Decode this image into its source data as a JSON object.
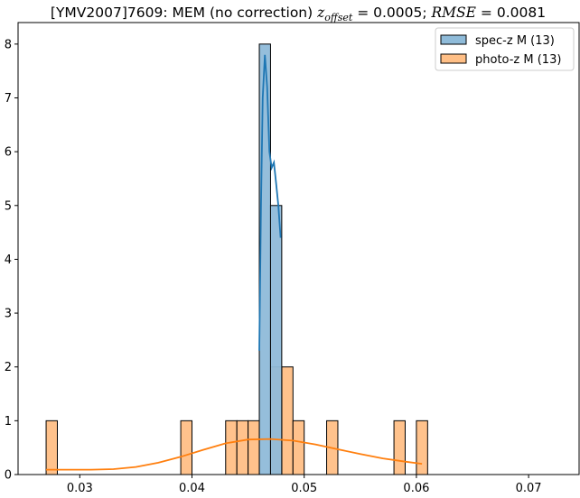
{
  "chart_data": {
    "type": "bar",
    "title": {
      "prefix": "[YMV2007]7609: MEM (no correction) ",
      "z_symbol": "z",
      "z_subscript": "offset",
      "eq1": " = 0.0005; ",
      "rmse_symbol": "RMSE",
      "eq2": " = 0.0081"
    },
    "xlabel": "",
    "ylabel": "",
    "xlim": [
      0.0245,
      0.0745
    ],
    "ylim": [
      0,
      8.4
    ],
    "x_ticks": [
      {
        "value": 0.03,
        "label": "0.03"
      },
      {
        "value": 0.04,
        "label": "0.04"
      },
      {
        "value": 0.05,
        "label": "0.05"
      },
      {
        "value": 0.06,
        "label": "0.06"
      },
      {
        "value": 0.07,
        "label": "0.07"
      }
    ],
    "y_ticks": [
      {
        "value": 0,
        "label": "0"
      },
      {
        "value": 1,
        "label": "1"
      },
      {
        "value": 2,
        "label": "2"
      },
      {
        "value": 3,
        "label": "3"
      },
      {
        "value": 4,
        "label": "4"
      },
      {
        "value": 5,
        "label": "5"
      },
      {
        "value": 6,
        "label": "6"
      },
      {
        "value": 7,
        "label": "7"
      },
      {
        "value": 8,
        "label": "8"
      }
    ],
    "grid": false,
    "legend_position": "top-right",
    "series": [
      {
        "name": "spec-z M (13)",
        "color": "#1f77b4",
        "fill": "#8fbbd9",
        "bins": [
          {
            "x0": 0.046,
            "x1": 0.047,
            "count": 8
          },
          {
            "x0": 0.047,
            "x1": 0.048,
            "count": 5
          }
        ],
        "kde": [
          [
            0.046,
            2.3
          ],
          [
            0.04615,
            5.0
          ],
          [
            0.0463,
            7.0
          ],
          [
            0.0465,
            7.8
          ],
          [
            0.0467,
            7.2
          ],
          [
            0.0469,
            6.0
          ],
          [
            0.0471,
            5.7
          ],
          [
            0.0473,
            5.8
          ],
          [
            0.0475,
            5.4
          ],
          [
            0.0477,
            5.0
          ],
          [
            0.0479,
            4.4
          ]
        ]
      },
      {
        "name": "photo-z M (13)",
        "color": "#ff7f0e",
        "fill": "#ffbf86",
        "bins": [
          {
            "x0": 0.027,
            "x1": 0.028,
            "count": 1
          },
          {
            "x0": 0.039,
            "x1": 0.04,
            "count": 1
          },
          {
            "x0": 0.043,
            "x1": 0.044,
            "count": 1
          },
          {
            "x0": 0.044,
            "x1": 0.045,
            "count": 1
          },
          {
            "x0": 0.045,
            "x1": 0.046,
            "count": 1
          },
          {
            "x0": 0.047,
            "x1": 0.048,
            "count": 2
          },
          {
            "x0": 0.048,
            "x1": 0.049,
            "count": 2
          },
          {
            "x0": 0.049,
            "x1": 0.05,
            "count": 1
          },
          {
            "x0": 0.052,
            "x1": 0.053,
            "count": 1
          },
          {
            "x0": 0.058,
            "x1": 0.059,
            "count": 1
          },
          {
            "x0": 0.06,
            "x1": 0.061,
            "count": 1
          }
        ],
        "kde": [
          [
            0.027,
            0.09
          ],
          [
            0.029,
            0.09
          ],
          [
            0.031,
            0.09
          ],
          [
            0.033,
            0.1
          ],
          [
            0.035,
            0.14
          ],
          [
            0.037,
            0.22
          ],
          [
            0.039,
            0.33
          ],
          [
            0.041,
            0.46
          ],
          [
            0.043,
            0.58
          ],
          [
            0.045,
            0.65
          ],
          [
            0.047,
            0.66
          ],
          [
            0.049,
            0.63
          ],
          [
            0.051,
            0.56
          ],
          [
            0.053,
            0.47
          ],
          [
            0.055,
            0.38
          ],
          [
            0.057,
            0.3
          ],
          [
            0.059,
            0.24
          ],
          [
            0.0605,
            0.2
          ]
        ]
      }
    ]
  }
}
